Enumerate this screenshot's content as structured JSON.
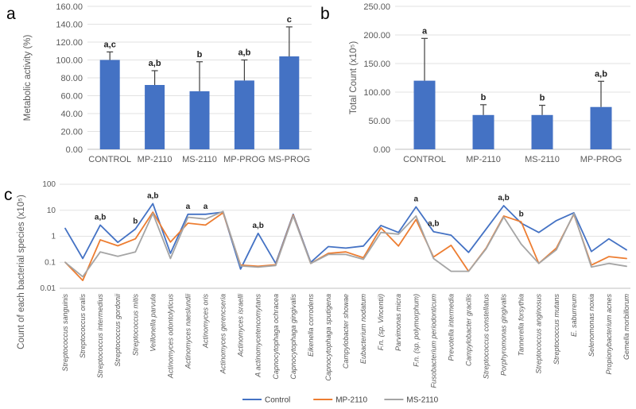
{
  "panels": {
    "a": {
      "letter": "a"
    },
    "b": {
      "letter": "b"
    },
    "c": {
      "letter": "c"
    }
  },
  "colors": {
    "bar_blue": "#4472C4",
    "line_control": "#4472C4",
    "line_mp2110": "#ED7D31",
    "line_ms2110": "#A5A5A5",
    "gridline": "#E2E2E2",
    "axis_line": "#BFBFBF",
    "error_bar": "#404040",
    "tick_text": "#595959"
  },
  "chart_data": [
    {
      "id": "a",
      "type": "bar",
      "ylabel": "Metabolic activity (%)",
      "categories": [
        "CONTROL",
        "MP-2110",
        "MS-2110",
        "MP-PROG",
        "MS-PROG"
      ],
      "values": [
        100,
        72,
        65,
        77,
        104
      ],
      "errors_up": [
        9,
        16,
        33,
        23,
        33
      ],
      "sig_labels": [
        "a,c",
        "a,b",
        "b",
        "a,b",
        "c"
      ],
      "ylim": [
        0,
        160
      ],
      "ytick_step": 20,
      "ytick_labels": [
        "0.00",
        "20.00",
        "40.00",
        "60.00",
        "80.00",
        "100.00",
        "120.00",
        "140.00",
        "160.00"
      ],
      "bar_color": "#4472C4",
      "grid": true,
      "legend": "none"
    },
    {
      "id": "b",
      "type": "bar",
      "ylabel": "Total Count (x10⁵)",
      "categories": [
        "CONTROL",
        "MP-2110",
        "MS-2110",
        "MP-PROG"
      ],
      "values": [
        120,
        60,
        60,
        74
      ],
      "errors_up": [
        74,
        18,
        17,
        45
      ],
      "sig_labels": [
        "a",
        "b",
        "b",
        "a,b"
      ],
      "ylim": [
        0,
        250
      ],
      "ytick_step": 50,
      "ytick_labels": [
        "0.00",
        "50.00",
        "100.00",
        "150.00",
        "200.00",
        "250.00"
      ],
      "bar_color": "#4472C4",
      "grid": true,
      "legend": "none"
    },
    {
      "id": "c",
      "type": "line",
      "ylabel": "Count of each bacterial species (x10⁵)",
      "yscale": "log",
      "ylim": [
        0.01,
        100
      ],
      "yticks": [
        100,
        10,
        1,
        0.1,
        0.01
      ],
      "grid": true,
      "legend_position": "bottom",
      "categories": [
        "Streptococcus sanguinis",
        "Streptococcus oralis",
        "Streptococcus intermedius",
        "Streptococcus gordonii",
        "Streptococcus mitis",
        "Veillonella parvula",
        "Actinomyces odontolyticus",
        "Actinomyces naeslundii",
        "Actinomyces oris",
        "Actinomyces gerencseria",
        "Actinomyces israelli",
        "A actinomycetencomytans",
        "Capnocytophaga ochracea",
        "Capnocytophaga gingivalis",
        "Eikenella corrodens",
        "Capnocytophaga sputigena",
        "Campylobacter showae",
        "Eubacterium nodatum",
        "F.n. (sp. Vincentii)",
        "Parvimonas micra",
        "F.n. (sp. polymorphum)",
        "Fusobacterium periodonticum",
        "Prevotella intermedia",
        "Campylobacter gracilis",
        "Streptococcus constellatus",
        "Porphyromonas gingivalis",
        "Tannerella forsythia",
        "Streptococcus anginosus",
        "Streptococcus mutans",
        "E. saburreum",
        "Selenomonas noxia",
        "Propionybacterium acnes",
        "Gemella morbillorum"
      ],
      "series": [
        {
          "name": "Control",
          "color": "#4472C4",
          "values": [
            2,
            0.14,
            2.7,
            0.58,
            1.9,
            18,
            0.22,
            7,
            7,
            8.5,
            0.055,
            1.3,
            0.09,
            7,
            0.1,
            0.4,
            0.35,
            0.42,
            2.6,
            1.4,
            13.5,
            1.5,
            1.1,
            0.24,
            1.9,
            15,
            3.2,
            1.4,
            4,
            8,
            0.26,
            0.8,
            0.3
          ]
        },
        {
          "name": "MP-2110",
          "color": "#ED7D31",
          "values": [
            0.1,
            0.02,
            0.73,
            0.43,
            0.8,
            8.5,
            0.6,
            3.2,
            2.7,
            8,
            0.078,
            0.07,
            0.08,
            6.5,
            0.09,
            0.22,
            0.25,
            0.15,
            2.1,
            0.42,
            4.4,
            0.16,
            0.45,
            0.045,
            0.35,
            6,
            3.6,
            0.09,
            0.35,
            7,
            0.078,
            0.165,
            0.14
          ]
        },
        {
          "name": "MS-2110",
          "color": "#A5A5A5",
          "values": [
            0.1,
            0.028,
            0.25,
            0.17,
            0.25,
            7.5,
            0.14,
            5.4,
            4.6,
            9,
            0.072,
            0.065,
            0.075,
            6,
            0.09,
            0.2,
            0.2,
            0.13,
            1.4,
            1.2,
            6,
            0.14,
            0.045,
            0.045,
            0.33,
            5.5,
            0.5,
            0.09,
            0.3,
            7.5,
            0.066,
            0.09,
            0.07
          ]
        }
      ],
      "sig_labels": [
        {
          "index": 2,
          "label": "a,b"
        },
        {
          "index": 4,
          "label": "b"
        },
        {
          "index": 5,
          "label": "a,b"
        },
        {
          "index": 7,
          "label": "a"
        },
        {
          "index": 8,
          "label": "a"
        },
        {
          "index": 11,
          "label": "a,b"
        },
        {
          "index": 20,
          "label": "a"
        },
        {
          "index": 21,
          "label": "a,b"
        },
        {
          "index": 25,
          "label": "a,b"
        },
        {
          "index": 26,
          "label": "b"
        }
      ]
    }
  ],
  "legend": {
    "items": [
      {
        "label": "Control",
        "color": "#4472C4"
      },
      {
        "label": "MP-2110",
        "color": "#ED7D31"
      },
      {
        "label": "MS-2110",
        "color": "#A5A5A5"
      }
    ]
  }
}
